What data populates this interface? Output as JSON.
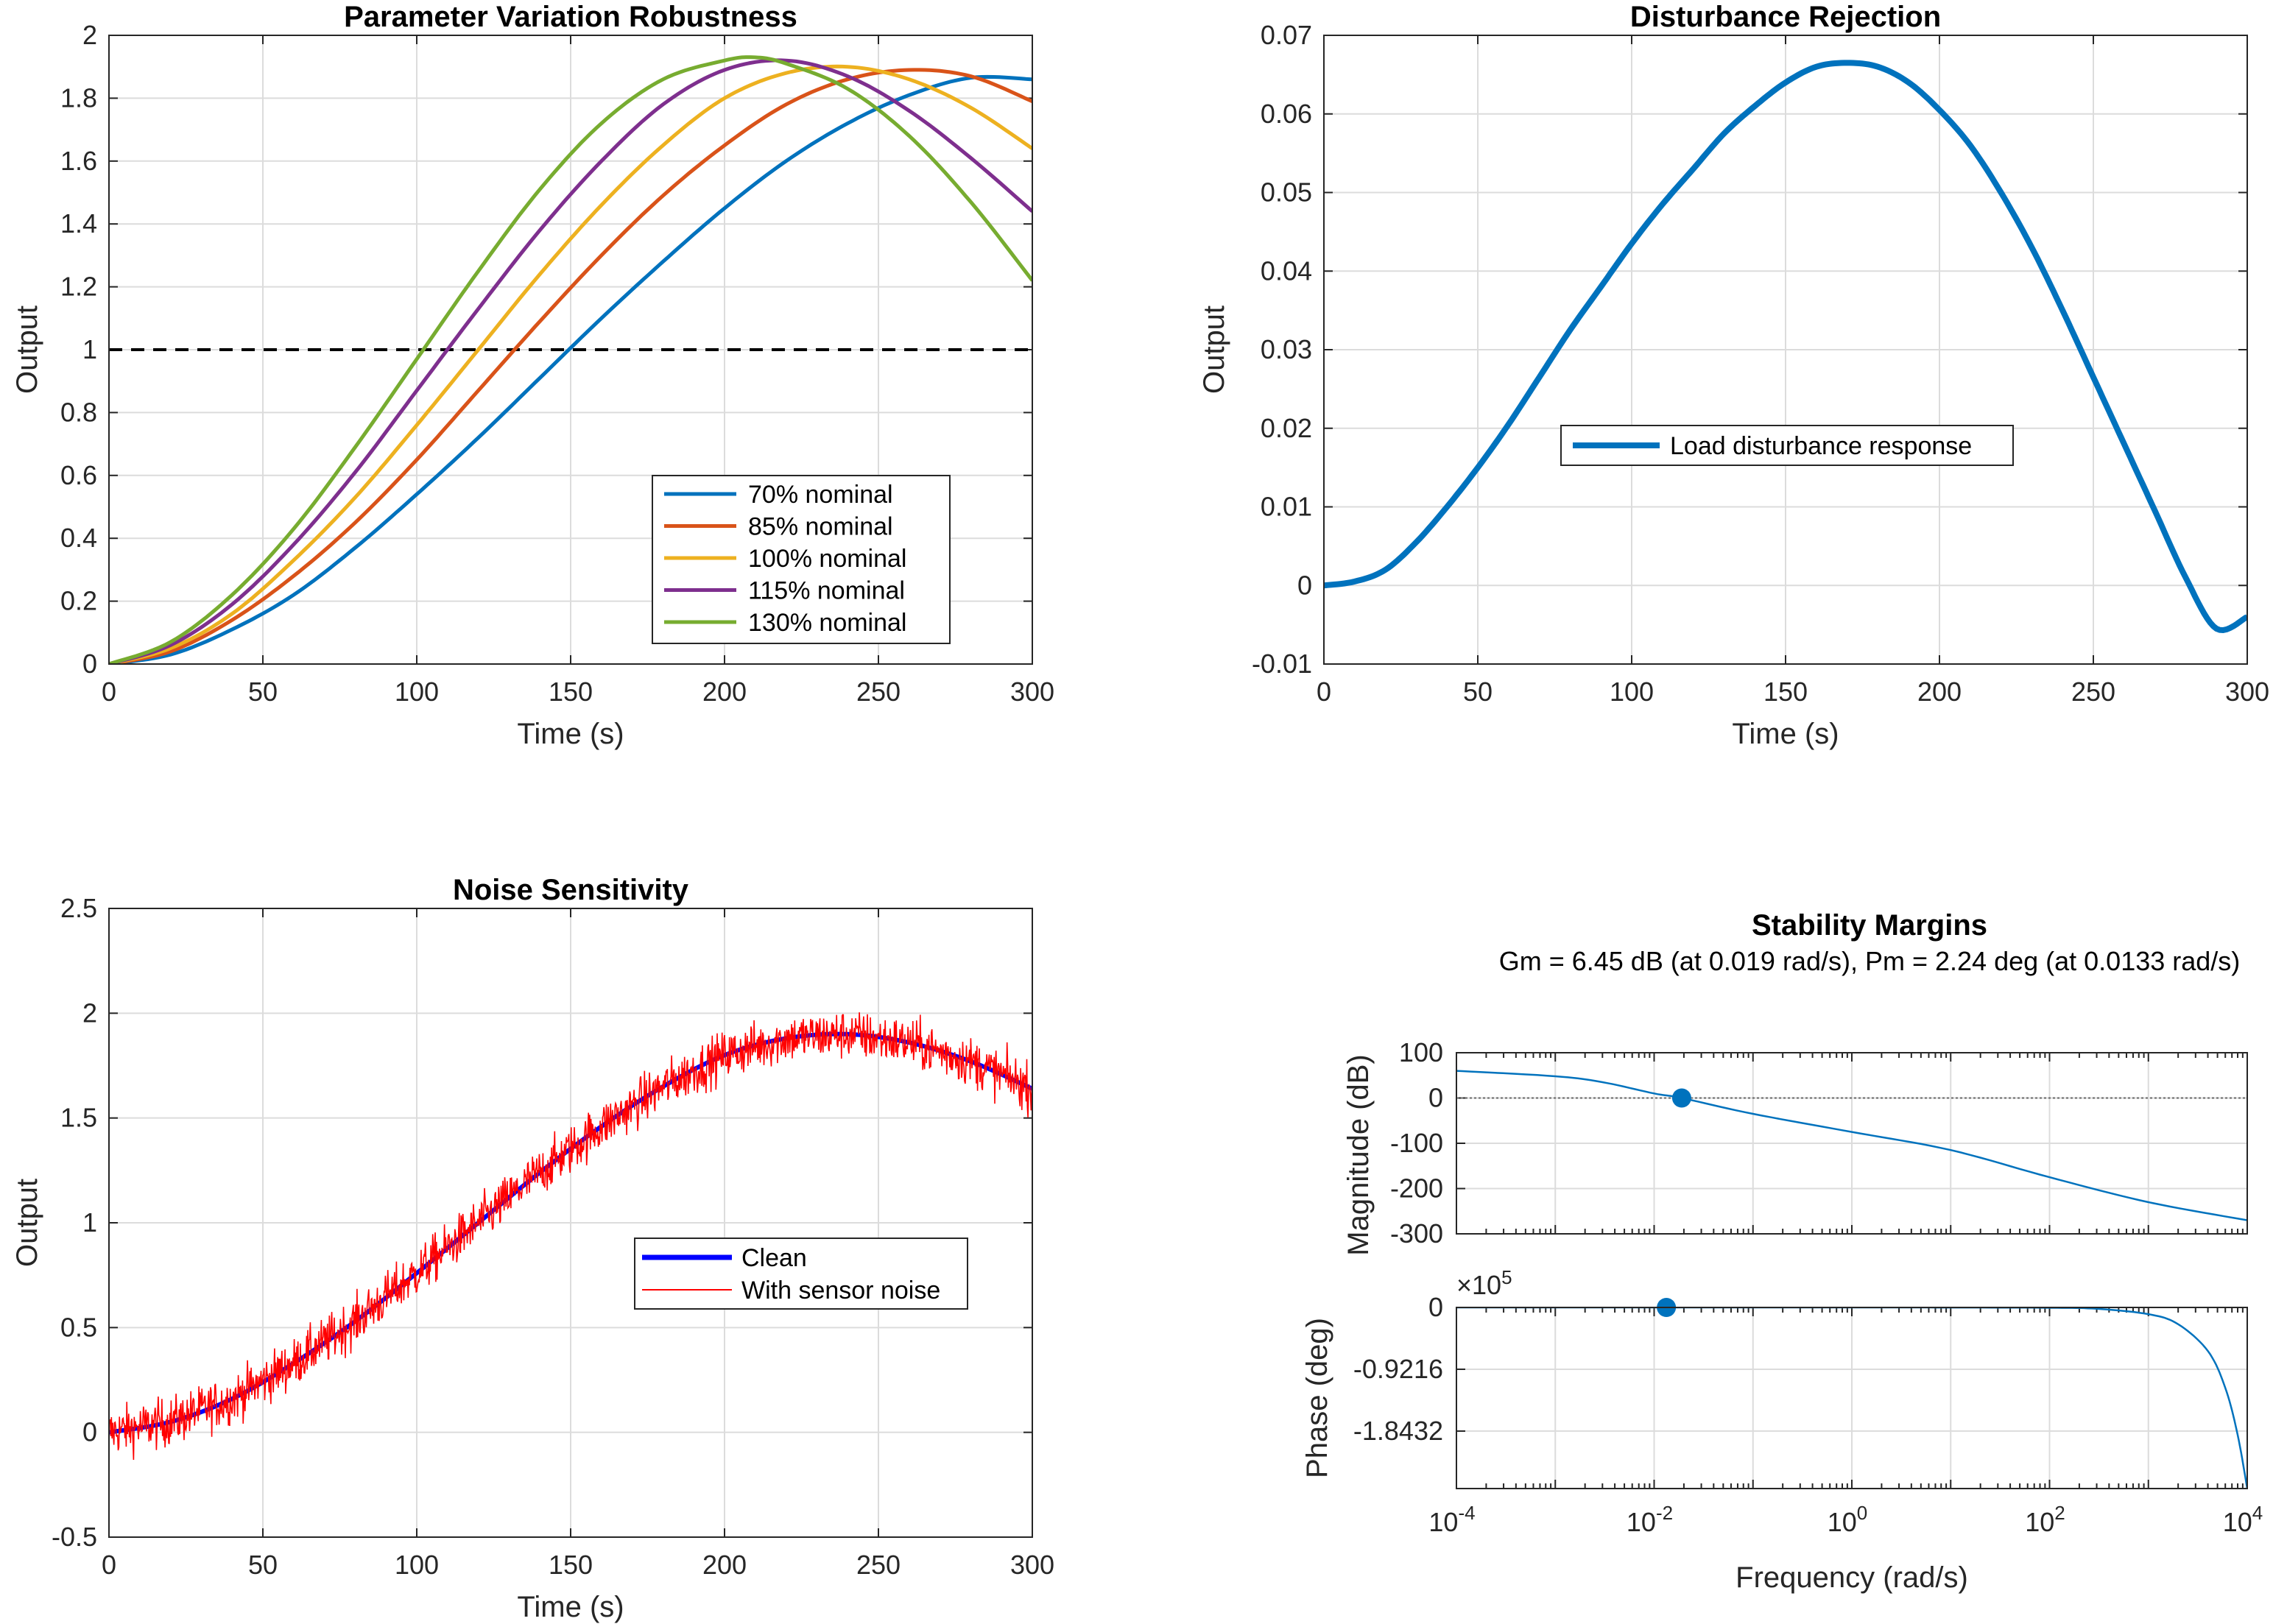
{
  "chart_data": [
    {
      "type": "line",
      "title": "Parameter Variation Robustness",
      "xlabel": "Time (s)",
      "ylabel": "Output",
      "xlim": [
        0,
        300
      ],
      "ylim": [
        0,
        2
      ],
      "xticks": [
        "0",
        "50",
        "100",
        "150",
        "200",
        "250",
        "300"
      ],
      "yticks": [
        "0",
        "0.2",
        "0.4",
        "0.6",
        "0.8",
        "1",
        "1.2",
        "1.4",
        "1.6",
        "1.8",
        "2"
      ],
      "grid": true,
      "legend_position": "lower-right",
      "reference_line": {
        "y": 1,
        "style": "dashed",
        "color": "#000000"
      },
      "series": [
        {
          "name": "70% nominal",
          "color": "#0072BD",
          "x": [
            0,
            20,
            40,
            60,
            80,
            100,
            120,
            140,
            160,
            180,
            200,
            220,
            240,
            260,
            280,
            300
          ],
          "values": [
            0,
            0.03,
            0.11,
            0.22,
            0.37,
            0.54,
            0.72,
            0.91,
            1.1,
            1.28,
            1.45,
            1.6,
            1.72,
            1.81,
            1.865,
            1.86
          ]
        },
        {
          "name": "85% nominal",
          "color": "#D95319",
          "x": [
            0,
            20,
            40,
            60,
            80,
            100,
            120,
            140,
            160,
            180,
            200,
            220,
            240,
            260,
            280,
            300
          ],
          "values": [
            0,
            0.04,
            0.14,
            0.28,
            0.45,
            0.65,
            0.87,
            1.09,
            1.3,
            1.49,
            1.65,
            1.78,
            1.86,
            1.89,
            1.87,
            1.79
          ]
        },
        {
          "name": "100% nominal",
          "color": "#EDB120",
          "x": [
            0,
            20,
            40,
            60,
            80,
            100,
            120,
            140,
            160,
            180,
            200,
            220,
            240,
            260,
            280,
            300
          ],
          "values": [
            0,
            0.05,
            0.16,
            0.33,
            0.53,
            0.76,
            1.0,
            1.24,
            1.46,
            1.65,
            1.8,
            1.88,
            1.9,
            1.86,
            1.77,
            1.64
          ]
        },
        {
          "name": "115% nominal",
          "color": "#7E2F8E",
          "x": [
            0,
            20,
            40,
            60,
            80,
            100,
            120,
            140,
            160,
            180,
            200,
            220,
            240,
            260,
            280,
            300
          ],
          "values": [
            0,
            0.06,
            0.19,
            0.38,
            0.61,
            0.87,
            1.13,
            1.38,
            1.6,
            1.78,
            1.89,
            1.92,
            1.87,
            1.76,
            1.61,
            1.44
          ]
        },
        {
          "name": "130% nominal",
          "color": "#77AC30",
          "x": [
            0,
            20,
            40,
            60,
            80,
            100,
            120,
            140,
            160,
            180,
            200,
            210,
            220,
            240,
            260,
            280,
            300
          ],
          "values": [
            0,
            0.07,
            0.22,
            0.43,
            0.69,
            0.97,
            1.25,
            1.51,
            1.72,
            1.86,
            1.92,
            1.93,
            1.91,
            1.83,
            1.68,
            1.47,
            1.22
          ]
        }
      ]
    },
    {
      "type": "line",
      "title": "Disturbance Rejection",
      "xlabel": "Time (s)",
      "ylabel": "Output",
      "xlim": [
        0,
        300
      ],
      "ylim": [
        -0.01,
        0.07
      ],
      "xticks": [
        "0",
        "50",
        "100",
        "150",
        "200",
        "250",
        "300"
      ],
      "yticks": [
        "-0.01",
        "0",
        "0.01",
        "0.02",
        "0.03",
        "0.04",
        "0.05",
        "0.06",
        "0.07"
      ],
      "grid": true,
      "legend_position": "center-left",
      "series": [
        {
          "name": "Load disturbance response",
          "color": "#0072BD",
          "x": [
            0,
            10,
            20,
            30,
            40,
            50,
            60,
            70,
            80,
            90,
            100,
            110,
            120,
            130,
            140,
            150,
            160,
            170,
            180,
            190,
            200,
            210,
            220,
            230,
            240,
            250,
            260,
            270,
            280,
            290,
            300
          ],
          "values": [
            0,
            0.0005,
            0.002,
            0.0055,
            0.01,
            0.015,
            0.0205,
            0.0265,
            0.0325,
            0.038,
            0.0435,
            0.0485,
            0.053,
            0.0575,
            0.061,
            0.064,
            0.066,
            0.0665,
            0.066,
            0.064,
            0.0605,
            0.056,
            0.05,
            0.043,
            0.035,
            0.0265,
            0.018,
            0.0095,
            0.001,
            -0.0055,
            -0.004
          ]
        }
      ]
    },
    {
      "type": "line",
      "title": "Noise Sensitivity",
      "xlabel": "Time (s)",
      "ylabel": "Output",
      "xlim": [
        0,
        300
      ],
      "ylim": [
        -0.5,
        2.5
      ],
      "xticks": [
        "0",
        "50",
        "100",
        "150",
        "200",
        "250",
        "300"
      ],
      "yticks": [
        "-0.5",
        "0",
        "0.5",
        "1",
        "1.5",
        "2",
        "2.5"
      ],
      "grid": true,
      "legend_position": "lower-right",
      "noise_amplitude": 0.15,
      "series": [
        {
          "name": "Clean",
          "color": "#0000FF",
          "x": [
            0,
            20,
            40,
            60,
            80,
            100,
            120,
            140,
            160,
            180,
            200,
            220,
            240,
            260,
            280,
            300
          ],
          "values": [
            0,
            0.05,
            0.16,
            0.33,
            0.53,
            0.76,
            1.0,
            1.24,
            1.46,
            1.65,
            1.8,
            1.88,
            1.9,
            1.86,
            1.77,
            1.64
          ]
        },
        {
          "name": "With sensor noise",
          "color": "#FF0000"
        }
      ]
    },
    {
      "type": "bode",
      "title": "Stability Margins",
      "subtitle": "Gm = 6.45 dB (at 0.019 rad/s),  Pm = 2.24 deg (at 0.0133 rad/s)",
      "xlabel": "Frequency (rad/s)",
      "xscale": "log",
      "xlim": [
        0.0001,
        10000
      ],
      "xticks": [
        {
          "base": "10",
          "exp": "-4"
        },
        {
          "base": "10",
          "exp": "-2"
        },
        {
          "base": "10",
          "exp": "0"
        },
        {
          "base": "10",
          "exp": "2"
        },
        {
          "base": "10",
          "exp": "4"
        }
      ],
      "color": "#0072BD",
      "magnitude": {
        "ylabel": "Magnitude (dB)",
        "ylim": [
          -300,
          100
        ],
        "yticks": [
          "100",
          "0",
          "-100",
          "-200",
          "-300"
        ],
        "x": [
          0.0001,
          0.001,
          0.003,
          0.01,
          0.019,
          0.1,
          1,
          10,
          100,
          1000,
          10000
        ],
        "values": [
          60,
          48,
          35,
          10,
          0,
          -35,
          -75,
          -115,
          -175,
          -230,
          -270
        ],
        "marker": {
          "x": 0.019,
          "y": 0
        }
      },
      "phase": {
        "ylabel": "Phase (deg)",
        "multiplier": "×10",
        "multiplier_exp": "5",
        "ylim": [
          -2.7,
          0
        ],
        "yticks": [
          "0",
          "-0.9216",
          "-1.8432"
        ],
        "x": [
          0.0001,
          1,
          10,
          100,
          300,
          1000,
          2000,
          4000,
          6000,
          8000,
          10000
        ],
        "values": [
          0,
          0,
          -0.001,
          -0.005,
          -0.02,
          -0.1,
          -0.25,
          -0.65,
          -1.2,
          -1.9,
          -2.7
        ],
        "marker": {
          "x": 0.0133,
          "y": 0
        }
      }
    }
  ]
}
